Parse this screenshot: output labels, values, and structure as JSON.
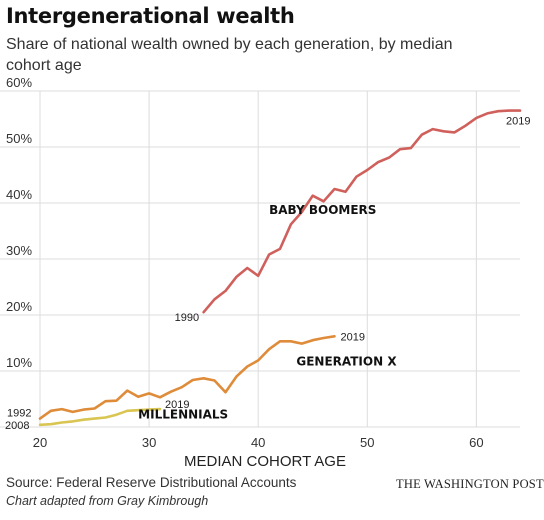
{
  "header": {
    "title": "Intergenerational wealth",
    "subtitle": "Share of national wealth owned by each generation, by median cohort age"
  },
  "footer": {
    "source": "Source: Federal Reserve Distributional Accounts",
    "credit": "Chart adapted from Gray Kimbrough",
    "brand": "THE WASHINGTON POST"
  },
  "colors": {
    "baby_boomers": "#d0605c",
    "generation_x": "#df8c3a",
    "millennials": "#d8c552",
    "grid": "#dcdcdc"
  },
  "chart_data": {
    "type": "line",
    "title": "Intergenerational wealth",
    "subtitle": "Share of national wealth owned by each generation, by median cohort age",
    "xlabel": "MEDIAN COHORT AGE",
    "ylabel": "",
    "xlim": [
      20,
      64
    ],
    "ylim": [
      0,
      60
    ],
    "xticks": [
      20,
      30,
      40,
      50,
      60
    ],
    "yticks": [
      {
        "value": 0,
        "label": ""
      },
      {
        "value": 10,
        "label": "10%"
      },
      {
        "value": 20,
        "label": "20%"
      },
      {
        "value": 30,
        "label": "30%"
      },
      {
        "value": 40,
        "label": "40%"
      },
      {
        "value": 50,
        "label": "50%"
      },
      {
        "value": 60,
        "label": "60%"
      }
    ],
    "grid": true,
    "legend": "direct labels",
    "series": [
      {
        "name": "BABY BOOMERS",
        "color_key": "baby_boomers",
        "start_label": "1990",
        "end_label": "2019",
        "x": [
          35,
          36,
          37,
          38,
          39,
          40,
          41,
          42,
          43,
          44,
          45,
          46,
          47,
          48,
          49,
          50,
          51,
          52,
          53,
          54,
          55,
          56,
          57,
          58,
          59,
          60,
          61,
          62,
          63,
          64
        ],
        "y": [
          20.5,
          22.8,
          24.3,
          26.8,
          28.4,
          27.0,
          30.8,
          31.8,
          36.2,
          38.4,
          41.3,
          40.3,
          42.5,
          42.0,
          44.7,
          45.9,
          47.3,
          48.1,
          49.6,
          49.8,
          52.2,
          53.2,
          52.8,
          52.6,
          53.8,
          55.2,
          56.0,
          56.4,
          56.5,
          56.5
        ]
      },
      {
        "name": "GENERATION X",
        "color_key": "generation_x",
        "start_label": "1992",
        "end_label": "2019",
        "x": [
          20,
          21,
          22,
          23,
          24,
          25,
          26,
          27,
          28,
          29,
          30,
          31,
          32,
          33,
          34,
          35,
          36,
          37,
          38,
          39,
          40,
          41,
          42,
          43,
          44,
          45,
          46,
          47
        ],
        "y": [
          1.5,
          2.9,
          3.2,
          2.7,
          3.1,
          3.3,
          4.6,
          4.7,
          6.5,
          5.4,
          6.0,
          5.3,
          6.3,
          7.1,
          8.4,
          8.7,
          8.3,
          6.2,
          9.0,
          10.8,
          11.9,
          13.9,
          15.3,
          15.3,
          14.9,
          15.5,
          15.9,
          16.2
        ]
      },
      {
        "name": "MILLENNIALS",
        "color_key": "millennials",
        "start_label": "2008",
        "end_label": "2019",
        "x": [
          20,
          21,
          22,
          23,
          24,
          25,
          26,
          27,
          28,
          29,
          30,
          31
        ],
        "y": [
          0.4,
          0.5,
          0.8,
          1.0,
          1.3,
          1.5,
          1.7,
          2.2,
          2.9,
          3.0,
          3.1,
          3.2
        ]
      }
    ],
    "annotations": [
      {
        "text": "BABY BOOMERS",
        "x": 41,
        "y": 38,
        "series": "BABY BOOMERS"
      },
      {
        "text": "GENERATION X",
        "x": 43.5,
        "y": 11,
        "series": "GENERATION X"
      },
      {
        "text": "MILLENNIALS",
        "x": 29,
        "y": 1.5,
        "series": "MILLENNIALS"
      }
    ]
  }
}
